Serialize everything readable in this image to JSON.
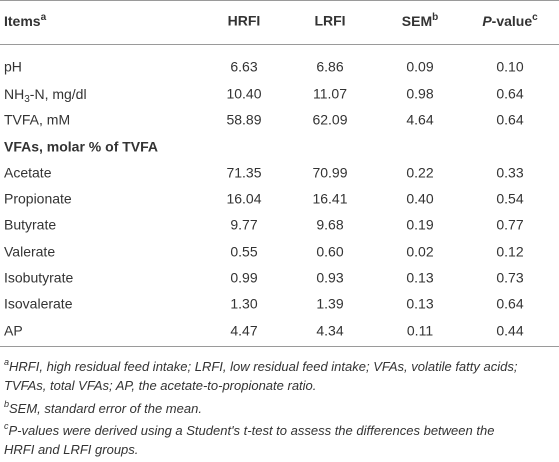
{
  "table": {
    "headers": [
      {
        "text": "Items",
        "sup": "a"
      },
      "HRFI",
      "LRFI",
      {
        "text": "SEM",
        "sup": "b"
      },
      {
        "italic": "P",
        "text": "-value",
        "sup": "c"
      }
    ],
    "rows": [
      [
        "pH",
        "6.63",
        "6.86",
        "0.09",
        "0.10"
      ],
      [
        {
          "text": "NH",
          "sub": "3",
          "rest": "-N, mg/dl"
        },
        "10.40",
        "11.07",
        "0.98",
        "0.64"
      ],
      [
        "TVFA, mM",
        "58.89",
        "62.09",
        "4.64",
        "0.64"
      ],
      {
        "section": "VFAs, molar % of TVFA"
      },
      [
        "Acetate",
        "71.35",
        "70.99",
        "0.22",
        "0.33"
      ],
      [
        "Propionate",
        "16.04",
        "16.41",
        "0.40",
        "0.54"
      ],
      [
        "Butyrate",
        "9.77",
        "9.68",
        "0.19",
        "0.77"
      ],
      [
        "Valerate",
        "0.55",
        "0.60",
        "0.02",
        "0.12"
      ],
      [
        "Isobutyrate",
        "0.99",
        "0.93",
        "0.13",
        "0.73"
      ],
      [
        "Isovalerate",
        "1.30",
        "1.39",
        "0.13",
        "0.64"
      ],
      [
        "AP",
        "4.47",
        "4.34",
        "0.11",
        "0.44"
      ]
    ]
  },
  "footnotes": [
    {
      "sup": "a",
      "lines": [
        "HRFI, high residual feed intake; LRFI, low residual feed intake; VFAs, volatile fatty acids;",
        "TVFAs, total VFAs; AP, the acetate-to-propionate ratio."
      ]
    },
    {
      "sup": "b",
      "lines": [
        "SEM, standard error of the mean."
      ]
    },
    {
      "sup": "c",
      "lines": [
        "P-values were derived using a Student's t-test to assess the differences between the",
        "HRFI and LRFI groups."
      ]
    }
  ]
}
